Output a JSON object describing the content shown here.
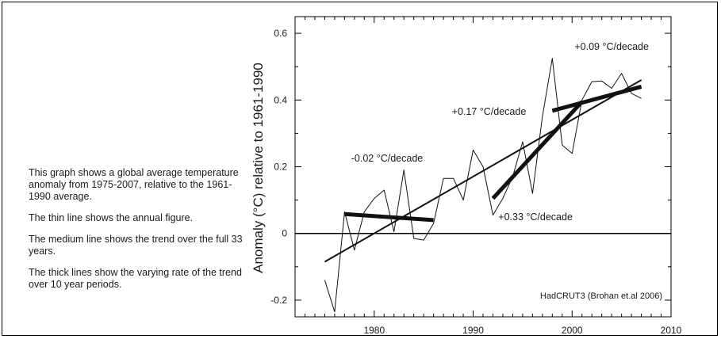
{
  "notes": [
    "This graph shows a global average temperature anomaly from 1975-2007, relative to the 1961-1990 average.",
    "The thin line shows the annual figure.",
    "The medium line shows the trend over the full 33 years.",
    "The thick lines show the varying rate of the trend over 10 year periods."
  ],
  "chart_data": {
    "type": "line",
    "ylabel": "Anomaly (°C) relative to 1961-1990",
    "xlabel": "",
    "title": "",
    "xlim": [
      1972,
      2010
    ],
    "ylim": [
      -0.25,
      0.65
    ],
    "xticks": [
      1980,
      1990,
      2000,
      2010
    ],
    "xtick_labels": [
      "1980",
      "1990",
      "2000",
      "2010"
    ],
    "yticks": [
      -0.2,
      0,
      0.2,
      0.4,
      0.6
    ],
    "ytick_labels": [
      "-0.2",
      "0",
      "0.2",
      "0.4",
      "0.6"
    ],
    "grid": false,
    "source_note": "HadCRUT3 (Brohan et.al 2006)",
    "zero_line": true,
    "series": [
      {
        "style": "thin",
        "x": [
          1975,
          1976,
          1977,
          1978,
          1979,
          1980,
          1981,
          1982,
          1983,
          1984,
          1985,
          1986,
          1987,
          1988,
          1989,
          1990,
          1991,
          1992,
          1993,
          1994,
          1995,
          1996,
          1997,
          1998,
          1999,
          2000,
          2001,
          2002,
          2003,
          2004,
          2005,
          2006,
          2007
        ],
        "values": [
          -0.14,
          -0.235,
          0.065,
          -0.05,
          0.065,
          0.105,
          0.13,
          0.005,
          0.19,
          -0.015,
          -0.02,
          0.03,
          0.165,
          0.165,
          0.1,
          0.25,
          0.2,
          0.055,
          0.105,
          0.17,
          0.275,
          0.12,
          0.35,
          0.525,
          0.265,
          0.24,
          0.4,
          0.455,
          0.457,
          0.435,
          0.48,
          0.42,
          0.405
        ]
      },
      {
        "style": "medium",
        "x": [
          1975,
          2007
        ],
        "values": [
          -0.085,
          0.46
        ]
      },
      {
        "style": "thick",
        "x": [
          1977,
          1986
        ],
        "values": [
          0.058,
          0.04
        ]
      },
      {
        "style": "thick",
        "x": [
          1992,
          2001
        ],
        "values": [
          0.105,
          0.395
        ]
      },
      {
        "style": "thick",
        "x": [
          1998,
          2007
        ],
        "values": [
          0.368,
          0.44
        ]
      }
    ],
    "annotations": [
      {
        "text": "-0.02 °C/decade",
        "x": 1981.3,
        "y": 0.215
      },
      {
        "text": "+0.17 °C/decade",
        "x": 1991.6,
        "y": 0.355
      },
      {
        "text": "+0.33 °C/decade",
        "x": 1996.3,
        "y": 0.04
      },
      {
        "text": "+0.09 °C/decade",
        "x": 2004.0,
        "y": 0.55
      }
    ]
  }
}
